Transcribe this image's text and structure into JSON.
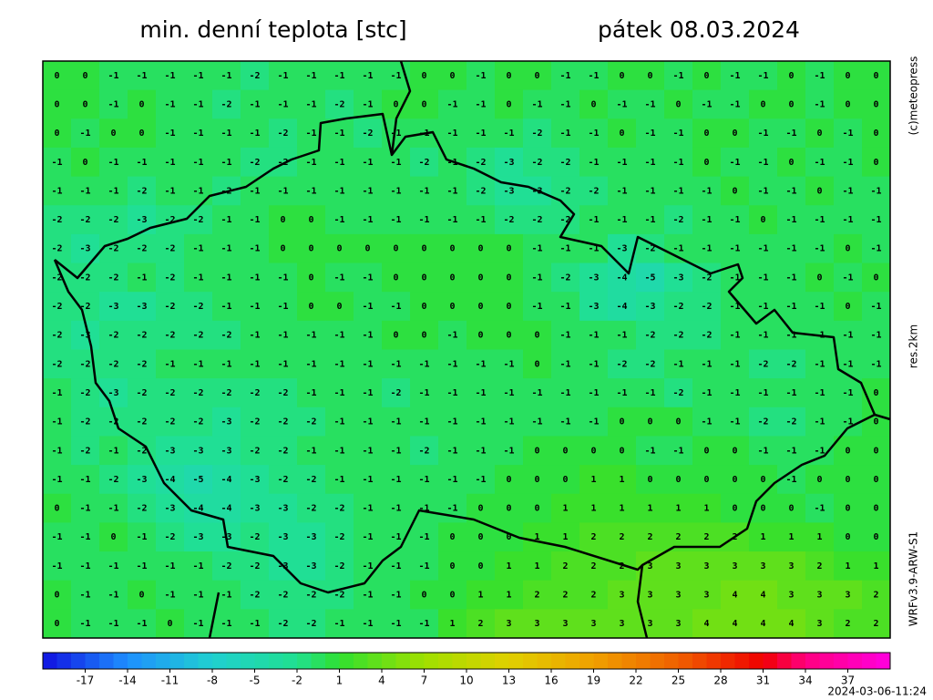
{
  "header": {
    "title": "min. denní teplota [stc]",
    "date": "pátek 08.03.2024"
  },
  "side": {
    "copyright": "(c)meteopress",
    "resolution": "res.2km",
    "model": "WRFv3.9-ARW-S1"
  },
  "footer": {
    "timestamp": "2024-03-06-11:24"
  },
  "colorbar": {
    "range": [
      -20,
      40
    ],
    "ticks": [
      -17,
      -14,
      -11,
      -8,
      -5,
      -2,
      1,
      4,
      7,
      10,
      13,
      16,
      19,
      22,
      25,
      28,
      31,
      34,
      37
    ],
    "stops": [
      [
        -20,
        "#1010e0"
      ],
      [
        -14,
        "#1e90ff"
      ],
      [
        -8,
        "#20d0d0"
      ],
      [
        -2,
        "#20e090"
      ],
      [
        1,
        "#30e030"
      ],
      [
        7,
        "#a0e000"
      ],
      [
        13,
        "#e0d000"
      ],
      [
        19,
        "#f0a000"
      ],
      [
        25,
        "#f06000"
      ],
      [
        31,
        "#f00000"
      ],
      [
        34,
        "#ff0080"
      ],
      [
        40,
        "#ff00e0"
      ]
    ]
  },
  "grid": {
    "rows": [
      [
        0,
        0,
        -1,
        -1,
        -1,
        -1,
        -1,
        -2,
        -1,
        -1,
        -1,
        -1,
        -1,
        0,
        0,
        -1,
        0,
        0,
        -1,
        -1,
        0,
        0,
        -1,
        0,
        -1,
        -1,
        0,
        -1,
        0,
        0
      ],
      [
        0,
        0,
        -1,
        0,
        -1,
        -1,
        -2,
        -1,
        -1,
        -1,
        -2,
        -1,
        0,
        0,
        -1,
        -1,
        0,
        -1,
        -1,
        0,
        -1,
        -1,
        0,
        -1,
        -1,
        0,
        0,
        -1,
        0,
        0
      ],
      [
        0,
        -1,
        0,
        0,
        -1,
        -1,
        -1,
        -1,
        -2,
        -1,
        -1,
        -2,
        -1,
        -1,
        -1,
        -1,
        -1,
        -2,
        -1,
        -1,
        0,
        -1,
        -1,
        0,
        0,
        -1,
        -1,
        0,
        -1,
        0
      ],
      [
        -1,
        0,
        -1,
        -1,
        -1,
        -1,
        -1,
        -2,
        -2,
        -1,
        -1,
        -1,
        -1,
        -2,
        -1,
        -2,
        -3,
        -2,
        -2,
        -1,
        -1,
        -1,
        -1,
        0,
        -1,
        -1,
        0,
        -1,
        -1,
        0
      ],
      [
        -1,
        -1,
        -1,
        -2,
        -1,
        -1,
        -2,
        -1,
        -1,
        -1,
        -1,
        -1,
        -1,
        -1,
        -1,
        -2,
        -3,
        -3,
        -2,
        -2,
        -1,
        -1,
        -1,
        -1,
        0,
        -1,
        -1,
        0,
        -1,
        -1
      ],
      [
        -2,
        -2,
        -2,
        -3,
        -2,
        -2,
        -1,
        -1,
        0,
        0,
        -1,
        -1,
        -1,
        -1,
        -1,
        -1,
        -2,
        -2,
        -2,
        -1,
        -1,
        -1,
        -2,
        -1,
        -1,
        0,
        -1,
        -1,
        -1,
        -1
      ],
      [
        -2,
        -3,
        -2,
        -2,
        -2,
        -1,
        -1,
        -1,
        0,
        0,
        0,
        0,
        0,
        0,
        0,
        0,
        0,
        -1,
        -1,
        -1,
        -3,
        -2,
        -1,
        -1,
        -1,
        -1,
        -1,
        -1,
        0,
        -1
      ],
      [
        -2,
        -2,
        -2,
        -1,
        -2,
        -1,
        -1,
        -1,
        -1,
        0,
        -1,
        -1,
        0,
        0,
        0,
        0,
        0,
        -1,
        -2,
        -3,
        -4,
        -5,
        -3,
        -2,
        -1,
        -1,
        -1,
        0,
        -1,
        0
      ],
      [
        -2,
        -2,
        -3,
        -3,
        -2,
        -2,
        -1,
        -1,
        -1,
        0,
        0,
        -1,
        -1,
        0,
        0,
        0,
        0,
        -1,
        -1,
        -3,
        -4,
        -3,
        -2,
        -2,
        -1,
        -1,
        -1,
        -1,
        0,
        -1
      ],
      [
        -2,
        -3,
        -2,
        -2,
        -2,
        -2,
        -2,
        -1,
        -1,
        -1,
        -1,
        -1,
        0,
        0,
        -1,
        0,
        0,
        0,
        -1,
        -1,
        -1,
        -2,
        -2,
        -2,
        -1,
        -1,
        -1,
        -1,
        -1,
        -1
      ],
      [
        -2,
        -2,
        -2,
        -2,
        -1,
        -1,
        -1,
        -1,
        -1,
        -1,
        -1,
        -1,
        -1,
        -1,
        -1,
        -1,
        -1,
        0,
        -1,
        -1,
        -2,
        -2,
        -1,
        -1,
        -1,
        -2,
        -2,
        -1,
        -1,
        -1
      ],
      [
        -1,
        -2,
        -3,
        -2,
        -2,
        -2,
        -2,
        -2,
        -2,
        -1,
        -1,
        -1,
        -2,
        -1,
        -1,
        -1,
        -1,
        -1,
        -1,
        -1,
        -1,
        -1,
        -2,
        -1,
        -1,
        -1,
        -1,
        -1,
        -1,
        0
      ],
      [
        -1,
        -2,
        -2,
        -2,
        -2,
        -2,
        -3,
        -2,
        -2,
        -2,
        -1,
        -1,
        -1,
        -1,
        -1,
        -1,
        -1,
        -1,
        -1,
        -1,
        0,
        0,
        0,
        -1,
        -1,
        -2,
        -2,
        -1,
        -1,
        0
      ],
      [
        -1,
        -2,
        -1,
        -2,
        -3,
        -3,
        -3,
        -2,
        -2,
        -1,
        -1,
        -1,
        -1,
        -2,
        -1,
        -1,
        -1,
        0,
        0,
        0,
        0,
        -1,
        -1,
        0,
        0,
        -1,
        -1,
        -1,
        0,
        0
      ],
      [
        -1,
        -1,
        -2,
        -3,
        -4,
        -5,
        -4,
        -3,
        -2,
        -2,
        -1,
        -1,
        -1,
        -1,
        -1,
        -1,
        0,
        0,
        0,
        1,
        1,
        0,
        0,
        0,
        0,
        0,
        -1,
        0,
        0,
        0
      ],
      [
        0,
        -1,
        -1,
        -2,
        -3,
        -4,
        -4,
        -3,
        -3,
        -2,
        -2,
        -1,
        -1,
        -1,
        -1,
        0,
        0,
        0,
        1,
        1,
        1,
        1,
        1,
        1,
        0,
        0,
        0,
        -1,
        0,
        0
      ],
      [
        -1,
        -1,
        0,
        -1,
        -2,
        -3,
        -3,
        -2,
        -3,
        -3,
        -2,
        -1,
        -1,
        -1,
        0,
        0,
        0,
        1,
        1,
        2,
        2,
        2,
        2,
        2,
        2,
        1,
        1,
        1,
        0,
        0
      ],
      [
        -1,
        -1,
        -1,
        -1,
        -1,
        -1,
        -2,
        -2,
        -3,
        -3,
        -2,
        -1,
        -1,
        -1,
        0,
        0,
        1,
        1,
        2,
        2,
        2,
        3,
        3,
        3,
        3,
        3,
        3,
        2,
        1,
        1
      ],
      [
        0,
        -1,
        -1,
        0,
        -1,
        -1,
        -1,
        -2,
        -2,
        -2,
        -2,
        -1,
        -1,
        0,
        0,
        1,
        1,
        2,
        2,
        2,
        3,
        3,
        3,
        3,
        4,
        4,
        3,
        3,
        3,
        2
      ],
      [
        0,
        -1,
        -1,
        -1,
        0,
        -1,
        -1,
        -1,
        -2,
        -2,
        -1,
        -1,
        -1,
        -1,
        1,
        2,
        3,
        3,
        3,
        3,
        3,
        3,
        3,
        4,
        4,
        4,
        4,
        3,
        2,
        2
      ]
    ]
  }
}
